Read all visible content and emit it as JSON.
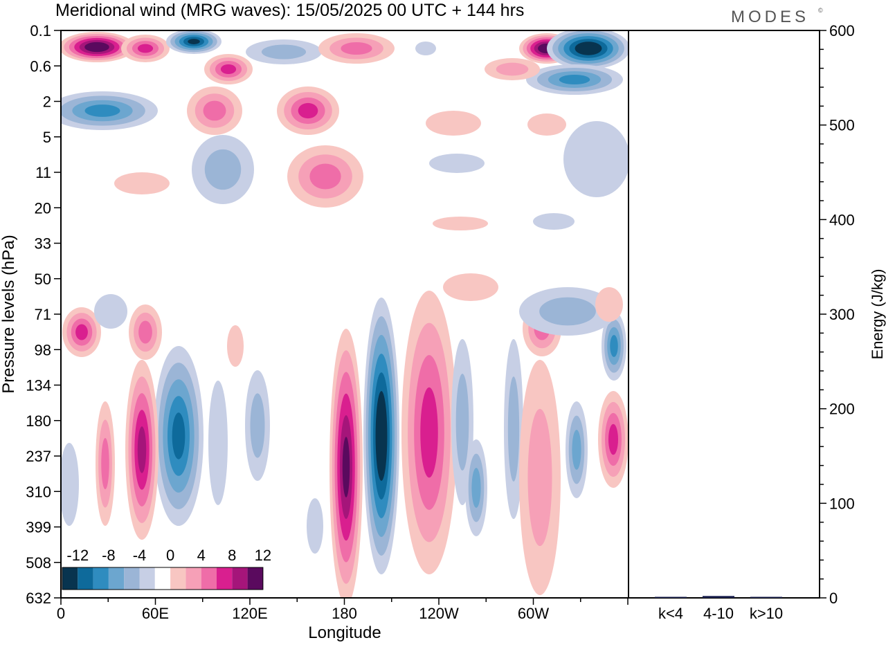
{
  "header": {
    "title": "Meridional wind (MRG waves):  15/05/2025  00 UTC  + 144 hrs",
    "brand": "MODES",
    "brand_mark": "©"
  },
  "chart_data": [
    {
      "type": "heatmap",
      "title": "Meridional wind (MRG waves):  15/05/2025  00 UTC  + 144 hrs",
      "xlabel": "Longitude",
      "ylabel": "Pressure levels (hPa)",
      "x_ticks": [
        "0",
        "60E",
        "120E",
        "180",
        "120W",
        "60W"
      ],
      "y_ticks": [
        "0.1",
        "0.6",
        "2",
        "5",
        "11",
        "20",
        "33",
        "50",
        "71",
        "98",
        "134",
        "180",
        "237",
        "310",
        "399",
        "508",
        "632"
      ],
      "colorbar": {
        "labels": [
          "-12",
          "-8",
          "-4",
          "0",
          "4",
          "8",
          "12"
        ],
        "levels": [
          -14,
          -12,
          -10,
          -8,
          -6,
          -4,
          -2,
          2,
          4,
          6,
          8,
          10,
          12,
          14
        ],
        "colors": [
          "#08344f",
          "#0e6a9b",
          "#2f8cbf",
          "#6ca6cf",
          "#9bb5d6",
          "#c7cfe5",
          "#ffffff",
          "#f8c6c2",
          "#f6a0b7",
          "#ef6da8",
          "#d91f8f",
          "#a5157a",
          "#5a0a5e"
        ]
      },
      "features": [
        {
          "kind": "positive",
          "max_level": 12,
          "lon": 180,
          "p_top": 98,
          "p_bottom": 632
        },
        {
          "kind": "negative",
          "max_level": -14,
          "lon": -160,
          "p_top": 71,
          "p_bottom": 508
        },
        {
          "kind": "positive",
          "max_level": 8,
          "lon": -140,
          "p_top": 71,
          "p_bottom": 632
        },
        {
          "kind": "negative",
          "max_level": -10,
          "lon": 75,
          "p_top": 134,
          "p_bottom": 399
        },
        {
          "kind": "positive",
          "max_level": 10,
          "lon": 50,
          "p_top": 134,
          "p_bottom": 508
        },
        {
          "kind": "positive",
          "max_level": 14,
          "lon": 25,
          "p_top": 0.1,
          "p_bottom": 0.6
        },
        {
          "kind": "negative",
          "max_level": -14,
          "lon": -45,
          "p_top": 0.1,
          "p_bottom": 2
        }
      ]
    },
    {
      "type": "bar",
      "categories": [
        "k<4",
        "4-10",
        "k>10"
      ],
      "values": [
        0,
        2,
        0
      ],
      "ylabel": "Energy (J/kg)",
      "y_ticks": [
        0,
        100,
        200,
        300,
        400,
        500,
        600
      ],
      "ylim": [
        0,
        600
      ]
    }
  ]
}
